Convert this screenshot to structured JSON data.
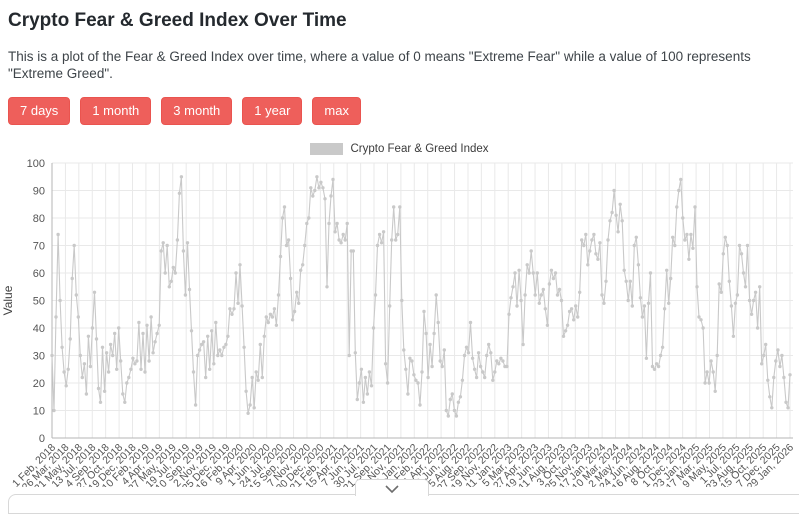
{
  "page": {
    "title": "Crypto Fear & Greed Index Over Time",
    "description": "This is a plot of the Fear & Greed Index over time, where a value of 0 means \"Extreme Fear\" while a value of 100 represents \"Extreme Greed\".",
    "range_buttons": [
      "7 days",
      "1 month",
      "3 month",
      "1 year",
      "max"
    ],
    "accent_color": "#ee5f5b"
  },
  "chart_data": {
    "type": "scatter",
    "mode": "lines+markers",
    "series_name": "Crypto Fear & Greed Index",
    "series_color": "#c9c9c9",
    "title": "",
    "xlabel": "",
    "ylabel": "Value",
    "ylim": [
      0,
      100
    ],
    "y_ticks": [
      0,
      10,
      20,
      30,
      40,
      50,
      60,
      70,
      80,
      90,
      100
    ],
    "grid": true,
    "legend_position": "top-center",
    "x_tick_labels": [
      "1 Feb, 2018",
      "26 Mar, 2018",
      "21 May, 2018",
      "13 Jul, 2018",
      "4 Sep, 2018",
      "27 Oct, 2018",
      "19 Dec, 2018",
      "10 Feb, 2019",
      "4 Apr, 2019",
      "27 May, 2019",
      "19 Jul, 2019",
      "10 Sep, 2019",
      "2 Nov, 2019",
      "25 Dec, 2019",
      "16 Feb, 2020",
      "9 Apr, 2020",
      "1 Jun, 2020",
      "24 Jul, 2020",
      "15 Sep, 2020",
      "7 Nov, 2020",
      "30 Dec, 2020",
      "21 Feb, 2021",
      "15 Apr, 2021",
      "7 Jun, 2021",
      "30 Jul, 2021",
      "21 Sep, 2021",
      "13 Nov, 2021",
      "6 Jan, 2022",
      "27 Feb, 2022",
      "21 Apr, 2022",
      "13 Jun, 2022",
      "5 Aug, 2022",
      "27 Sep, 2022",
      "19 Nov, 2022",
      "11 Jan, 2023",
      "5 Mar, 2023",
      "27 Apr, 2023",
      "19 Jun, 2023",
      "11 Aug, 2023",
      "3 Oct, 2023",
      "25 Nov, 2023",
      "17 Jan, 2024",
      "10 Mar, 2024",
      "2 May, 2024",
      "24 Jun, 2024",
      "16 Aug, 2024",
      "8 Oct, 2024",
      "1 Dec, 2024",
      "23 Jan, 2025",
      "17 Mar, 2025",
      "9 May, 2025",
      "1 Jul, 2025",
      "23 Aug, 2025",
      "15 Oct, 2025",
      "7 Dec, 2025",
      "29 Jan, 2026"
    ],
    "sampling": {
      "start_label": "1 Feb, 2018",
      "end_label": "29 Jan, 2026",
      "step_days": 8,
      "total_days": 2920
    },
    "values": [
      30,
      10,
      44,
      74,
      50,
      33,
      24,
      19,
      25,
      36,
      58,
      70,
      52,
      44,
      30,
      22,
      27,
      16,
      37,
      26,
      40,
      53,
      36,
      18,
      13,
      33,
      17,
      31,
      24,
      34,
      30,
      38,
      25,
      40,
      28,
      16,
      13,
      20,
      22,
      25,
      29,
      27,
      28,
      42,
      25,
      38,
      24,
      41,
      28,
      44,
      31,
      35,
      38,
      41,
      68,
      71,
      60,
      70,
      55,
      57,
      62,
      60,
      72,
      89,
      95,
      68,
      52,
      71,
      54,
      39,
      24,
      12,
      30,
      32,
      34,
      35,
      22,
      37,
      25,
      39,
      27,
      42,
      30,
      32,
      30,
      33,
      34,
      37,
      47,
      45,
      47,
      60,
      49,
      63,
      48,
      33,
      17,
      9,
      12,
      22,
      11,
      24,
      21,
      34,
      22,
      37,
      44,
      42,
      45,
      44,
      47,
      41,
      52,
      66,
      80,
      84,
      70,
      72,
      58,
      43,
      46,
      53,
      49,
      61,
      63,
      70,
      78,
      80,
      91,
      88,
      90,
      95,
      91,
      93,
      91,
      87,
      55,
      78,
      88,
      94,
      75,
      78,
      72,
      71,
      74,
      72,
      78,
      30,
      68,
      68,
      31,
      14,
      20,
      25,
      13,
      22,
      16,
      24,
      19,
      40,
      52,
      70,
      74,
      71,
      75,
      27,
      20,
      48,
      72,
      84,
      72,
      74,
      84,
      50,
      32,
      25,
      16,
      29,
      28,
      23,
      21,
      20,
      12,
      24,
      46,
      38,
      22,
      34,
      26,
      38,
      52,
      42,
      28,
      26,
      32,
      10,
      8,
      14,
      16,
      10,
      8,
      13,
      15,
      21,
      30,
      33,
      31,
      42,
      29,
      25,
      22,
      31,
      26,
      24,
      22,
      30,
      34,
      31,
      21,
      24,
      28,
      27,
      29,
      28,
      26,
      26,
      45,
      51,
      55,
      60,
      48,
      61,
      50,
      34,
      52,
      63,
      60,
      68,
      60,
      52,
      60,
      49,
      52,
      54,
      47,
      41,
      56,
      61,
      58,
      60,
      52,
      54,
      50,
      37,
      39,
      41,
      46,
      47,
      43,
      48,
      44,
      53,
      72,
      70,
      74,
      63,
      68,
      72,
      74,
      67,
      65,
      71,
      52,
      49,
      57,
      72,
      79,
      82,
      90,
      81,
      75,
      85,
      79,
      61,
      57,
      50,
      57,
      48,
      70,
      73,
      63,
      51,
      44,
      48,
      29,
      49,
      60,
      26,
      25,
      27,
      26,
      30,
      33,
      47,
      61,
      49,
      58,
      73,
      70,
      84,
      90,
      94,
      80,
      72,
      74,
      65,
      74,
      69,
      84,
      55,
      44,
      43,
      40,
      20,
      24,
      20,
      28,
      24,
      17,
      30,
      56,
      53,
      67,
      73,
      70,
      57,
      48,
      37,
      49,
      52,
      70,
      67,
      60,
      55,
      70,
      50,
      45,
      50,
      53,
      40,
      55,
      27,
      30,
      34,
      21,
      15,
      11,
      22,
      28,
      32,
      26,
      30,
      22,
      13,
      11,
      23
    ],
    "axis_color": "#b5b5b5",
    "grid_color": "#e9e9e9",
    "tick_label_color": "#555555"
  },
  "expander": {
    "chevron_icon": "chevron-down"
  }
}
